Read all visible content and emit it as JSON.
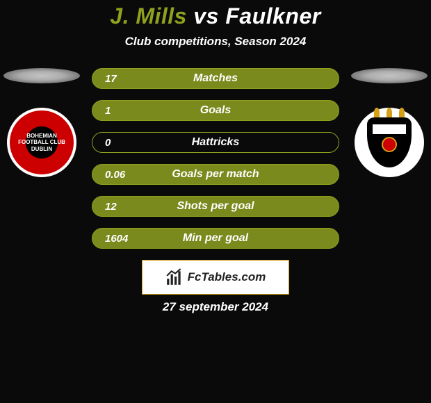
{
  "title": "J. Mills vs Faulkner",
  "subtitle": "Club competitions, Season 2024",
  "left_team": {
    "name": "Bohemian FC",
    "crest_primary": "#c00000",
    "crest_secondary": "#000000"
  },
  "right_team": {
    "name": "Dundalk FC",
    "crest_primary": "#000000",
    "crest_secondary": "#ffffff"
  },
  "bar_style": {
    "empty_bg": "#0a0a0a",
    "fill_color": "#7a8a1c",
    "border_color": "#8fa11f",
    "text_color": "#ffffff",
    "height": 30,
    "radius": 15
  },
  "stats": [
    {
      "label": "Matches",
      "value": "17",
      "fill_pct": 100
    },
    {
      "label": "Goals",
      "value": "1",
      "fill_pct": 100
    },
    {
      "label": "Hattricks",
      "value": "0",
      "fill_pct": 0
    },
    {
      "label": "Goals per match",
      "value": "0.06",
      "fill_pct": 100
    },
    {
      "label": "Shots per goal",
      "value": "12",
      "fill_pct": 100
    },
    {
      "label": "Min per goal",
      "value": "1604",
      "fill_pct": 100
    }
  ],
  "attribution": "FcTables.com",
  "date": "27 september 2024",
  "colors": {
    "background": "#0a0a0a",
    "title_left": "#8fa11f",
    "title_right": "#ffffff",
    "text": "#ffffff"
  }
}
